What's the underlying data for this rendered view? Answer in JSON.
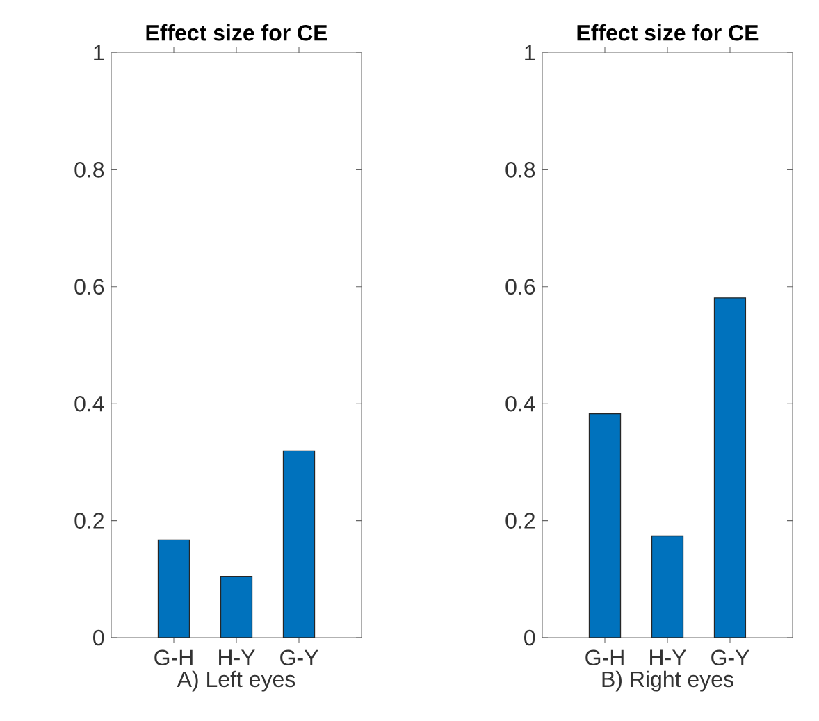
{
  "chart_data": [
    {
      "type": "bar",
      "title": "Effect size for CE",
      "xlabel": "A) Left eyes",
      "categories": [
        "G-H",
        "H-Y",
        "G-Y"
      ],
      "values": [
        0.167,
        0.105,
        0.319
      ],
      "color": "#0072bd",
      "ylim": [
        0,
        1
      ],
      "yticks": [
        0,
        0.2,
        0.4,
        0.6,
        0.8,
        1
      ]
    },
    {
      "type": "bar",
      "title": "Effect size for CE",
      "xlabel": "B) Right eyes",
      "categories": [
        "G-H",
        "H-Y",
        "G-Y"
      ],
      "values": [
        0.383,
        0.174,
        0.581
      ],
      "color": "#0072bd",
      "ylim": [
        0,
        1
      ],
      "yticks": [
        0,
        0.2,
        0.4,
        0.6,
        0.8,
        1
      ]
    }
  ]
}
